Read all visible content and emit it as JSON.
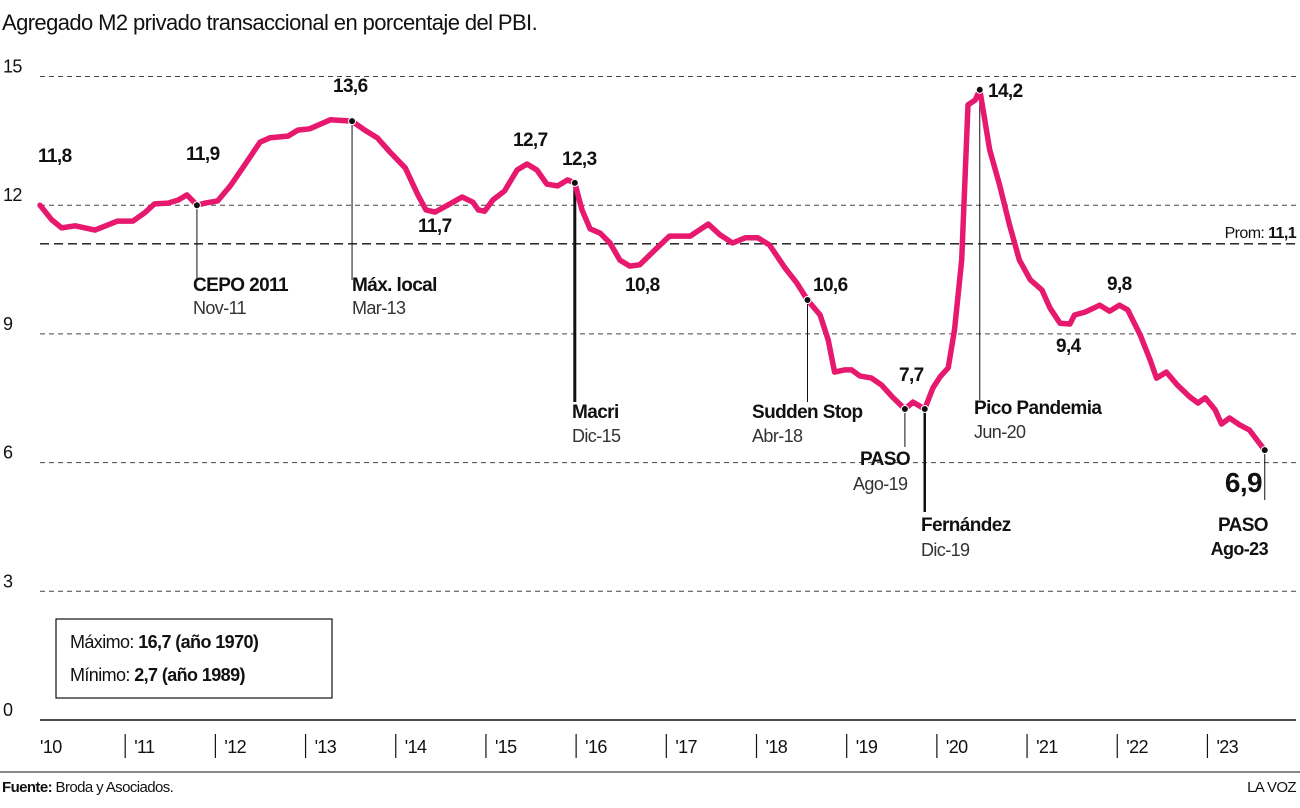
{
  "chart_data": {
    "type": "line",
    "title": "Agregado M2 privado transaccional en porcentaje del PBI.",
    "color": "#e6196e",
    "x": [
      2010.0,
      2010.13,
      2010.24,
      2010.39,
      2010.61,
      2010.86,
      2011.03,
      2011.16,
      2011.27,
      2011.42,
      2011.53,
      2011.63,
      2011.74,
      2011.83,
      2011.97,
      2012.11,
      2012.27,
      2012.44,
      2012.55,
      2012.75,
      2012.86,
      2012.99,
      2013.22,
      2013.46,
      2013.6,
      2013.74,
      2013.88,
      2014.05,
      2014.19,
      2014.28,
      2014.38,
      2014.52,
      2014.68,
      2014.8,
      2014.86,
      2014.93,
      2015.02,
      2015.15,
      2015.29,
      2015.4,
      2015.51,
      2015.62,
      2015.74,
      2015.85,
      2015.93,
      2016.01,
      2016.1,
      2016.21,
      2016.32,
      2016.43,
      2016.54,
      2016.65,
      2016.82,
      2016.98,
      2017.21,
      2017.41,
      2017.54,
      2017.68,
      2017.82,
      2017.96,
      2018.09,
      2018.26,
      2018.39,
      2018.51,
      2018.65,
      2018.74,
      2018.81,
      2018.92,
      2019.0,
      2019.09,
      2019.22,
      2019.33,
      2019.46,
      2019.59,
      2019.68,
      2019.81,
      2019.9,
      2019.98,
      2020.07,
      2020.14,
      2020.22,
      2020.29,
      2020.37,
      2020.42,
      2020.53,
      2020.64,
      2020.75,
      2020.86,
      2020.98,
      2021.11,
      2021.2,
      2021.31,
      2021.42,
      2021.47,
      2021.59,
      2021.75,
      2021.86,
      2021.97,
      2022.06,
      2022.2,
      2022.31,
      2022.38,
      2022.49,
      2022.61,
      2022.75,
      2022.84,
      2022.92,
      2023.03,
      2023.1,
      2023.19,
      2023.3,
      2023.41,
      2023.58
    ],
    "values": [
      12.0,
      11.66,
      11.47,
      11.52,
      11.42,
      11.63,
      11.63,
      11.82,
      12.03,
      12.05,
      12.12,
      12.24,
      12.0,
      12.05,
      12.1,
      12.45,
      12.94,
      13.47,
      13.57,
      13.61,
      13.75,
      13.78,
      13.99,
      13.96,
      13.75,
      13.57,
      13.24,
      12.87,
      12.24,
      11.89,
      11.84,
      12.0,
      12.19,
      12.07,
      11.89,
      11.86,
      12.12,
      12.33,
      12.82,
      12.96,
      12.82,
      12.49,
      12.45,
      12.59,
      12.52,
      11.89,
      11.45,
      11.35,
      11.12,
      10.72,
      10.58,
      10.61,
      10.96,
      11.28,
      11.28,
      11.56,
      11.31,
      11.12,
      11.24,
      11.24,
      11.07,
      10.54,
      10.19,
      9.79,
      9.44,
      8.86,
      8.11,
      8.16,
      8.16,
      8.02,
      7.97,
      7.81,
      7.51,
      7.25,
      7.41,
      7.25,
      7.74,
      8.0,
      8.21,
      9.09,
      10.72,
      14.34,
      14.45,
      14.69,
      13.29,
      12.47,
      11.54,
      10.72,
      10.26,
      10.02,
      9.6,
      9.25,
      9.23,
      9.44,
      9.51,
      9.67,
      9.53,
      9.67,
      9.56,
      8.97,
      8.39,
      7.97,
      8.11,
      7.81,
      7.53,
      7.39,
      7.51,
      7.23,
      6.9,
      7.04,
      6.88,
      6.76,
      6.29
    ],
    "xlim": [
      2010,
      2023.86
    ],
    "xticks": [
      {
        "value": 2010,
        "label": "'10"
      },
      {
        "value": 2011,
        "label": "'11"
      },
      {
        "value": 2012,
        "label": "'12"
      },
      {
        "value": 2013,
        "label": "'13"
      },
      {
        "value": 2014,
        "label": "'14"
      },
      {
        "value": 2015,
        "label": "'15"
      },
      {
        "value": 2016,
        "label": "'16"
      },
      {
        "value": 2017,
        "label": "'17"
      },
      {
        "value": 2018,
        "label": "'18"
      },
      {
        "value": 2019,
        "label": "'19"
      },
      {
        "value": 2020,
        "label": "'20"
      },
      {
        "value": 2021,
        "label": "'21"
      },
      {
        "value": 2022,
        "label": "'22"
      },
      {
        "value": 2023,
        "label": "'23"
      }
    ],
    "ylim": [
      0,
      15
    ],
    "yticks": [
      0,
      3,
      6,
      9,
      12,
      15
    ],
    "grid": true,
    "average": {
      "value": 11.1,
      "label": "Prom:",
      "value_label": "11,1"
    },
    "annotations": [
      {
        "label": "11,8"
      },
      {
        "label": "11,9",
        "event": "CEPO 2011",
        "date": "Nov-11"
      },
      {
        "label": "13,6",
        "event": "Máx. local",
        "date": "Mar-13"
      },
      {
        "label": "11,7"
      },
      {
        "label": "12,7"
      },
      {
        "label": "12,3",
        "event": "Macri",
        "date": "Dic-15"
      },
      {
        "label": "10,8"
      },
      {
        "label": "10,6",
        "event": "Sudden Stop",
        "date": "Abr-18"
      },
      {
        "label": "7,7",
        "event": "PASO",
        "date": "Ago-19"
      },
      {
        "event": "Fernández",
        "date": "Dic-19"
      },
      {
        "label": "14,2",
        "event": "Pico Pandemia",
        "date": "Jun-20"
      },
      {
        "label": "9,4"
      },
      {
        "label": "9,8"
      },
      {
        "label": "6,9",
        "event": "PASO",
        "date": "Ago-23"
      }
    ],
    "box": {
      "max_label": "Máximo:",
      "max_value": "16,7 (año 1970)",
      "min_label": "Mínimo:",
      "min_value": "2,7 (año 1989)"
    },
    "source_label": "Fuente:",
    "source": "Broda y Asociados.",
    "brand": "LA VOZ"
  }
}
